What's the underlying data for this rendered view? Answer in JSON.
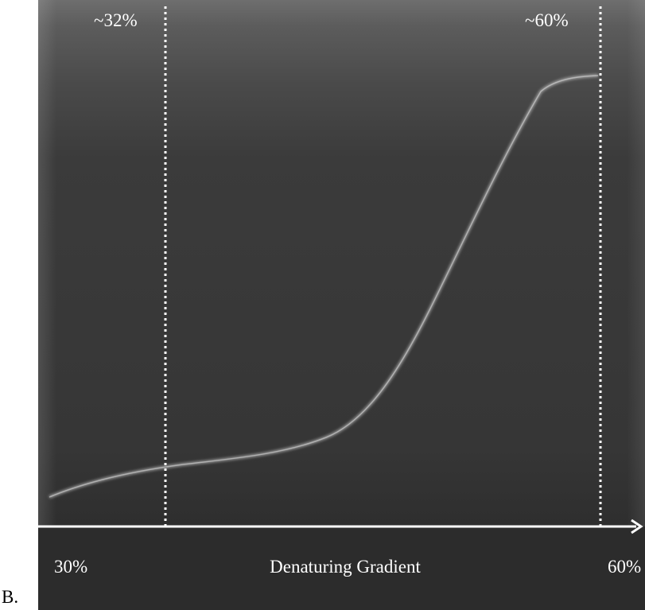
{
  "panel_label": "B.",
  "top_labels": {
    "left": "~32%",
    "right": "~60%"
  },
  "axis": {
    "start": "30%",
    "title": "Denaturing Gradient",
    "end": "60%"
  }
}
